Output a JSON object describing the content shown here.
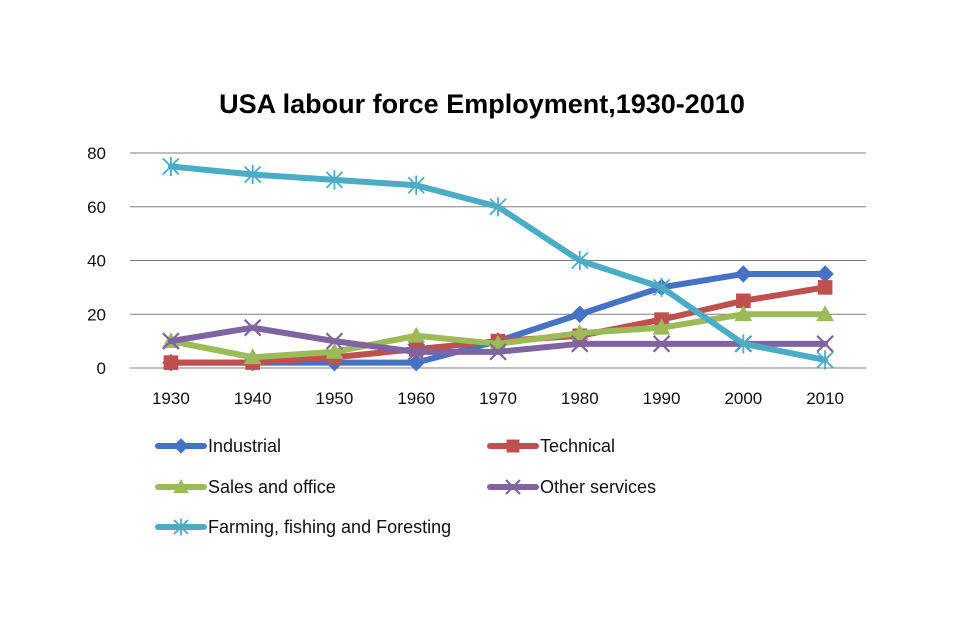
{
  "chart_data": {
    "type": "line",
    "title": "USA labour force Employment,1930-2010",
    "xlabel": "",
    "ylabel": "",
    "categories": [
      "1930",
      "1940",
      "1950",
      "1960",
      "1970",
      "1980",
      "1990",
      "2000",
      "2010"
    ],
    "ylim": [
      0,
      80
    ],
    "yticks": [
      0,
      20,
      40,
      60,
      80
    ],
    "ytick_labels": [
      "0",
      "20",
      "40",
      "60",
      "80"
    ],
    "grid": true,
    "legend_position": "bottom",
    "series": [
      {
        "name": "Industrial",
        "color": "#4472c4",
        "marker": "diamond",
        "values": [
          2,
          2,
          2,
          2,
          10,
          20,
          30,
          35,
          35
        ]
      },
      {
        "name": "Technical",
        "color": "#c0504d",
        "marker": "square",
        "values": [
          2,
          2,
          4,
          7,
          10,
          12,
          18,
          25,
          30
        ]
      },
      {
        "name": "Sales and office",
        "color": "#9bbb59",
        "marker": "triangle",
        "values": [
          10,
          4,
          6,
          12,
          9,
          13,
          15,
          20,
          20
        ]
      },
      {
        "name": "Other services",
        "color": "#8064a2",
        "marker": "x",
        "values": [
          10,
          15,
          10,
          6,
          6,
          9,
          9,
          9,
          9
        ]
      },
      {
        "name": "Farming, fishing and Foresting",
        "color": "#4bacc6",
        "marker": "star",
        "values": [
          75,
          72,
          70,
          68,
          60,
          40,
          30,
          9,
          3
        ]
      }
    ]
  }
}
